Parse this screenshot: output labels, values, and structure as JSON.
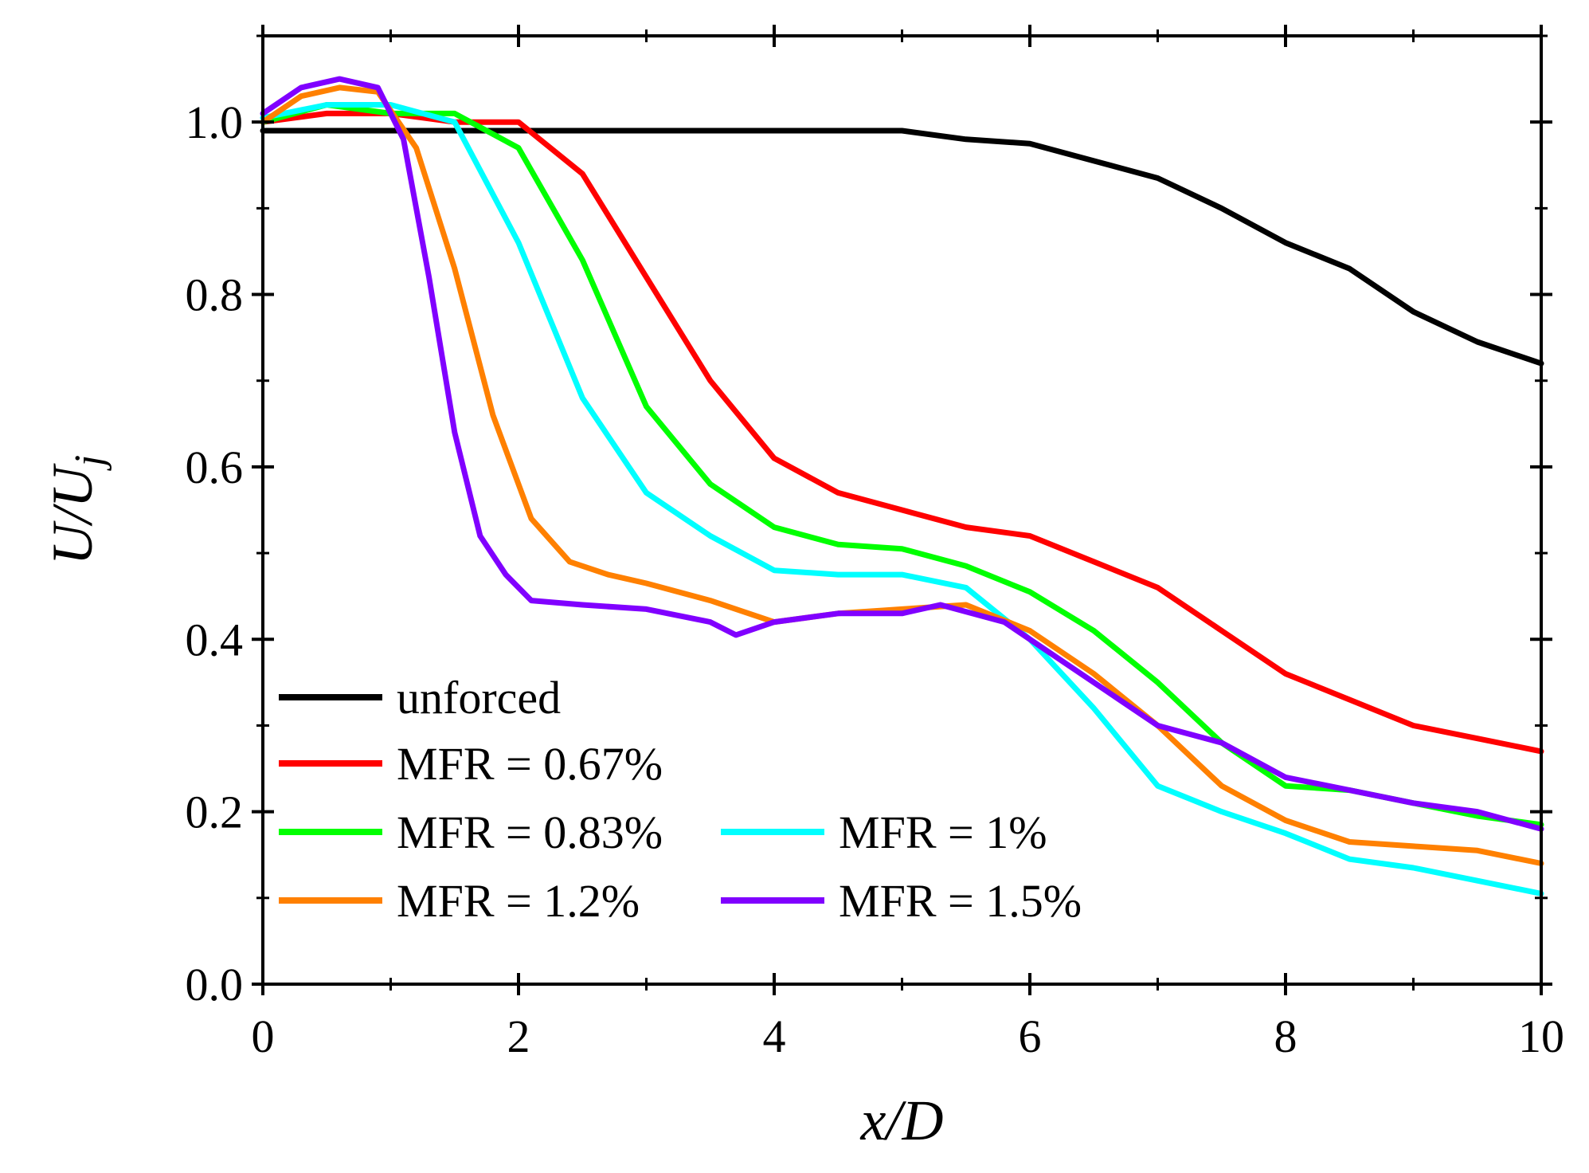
{
  "chart_data": {
    "type": "line",
    "xlabel": "x/D",
    "ylabel": "U/U_j",
    "ylabel_main": "U/U",
    "ylabel_sub": "j",
    "xlim": [
      0,
      10
    ],
    "ylim": [
      0,
      1.1
    ],
    "x_ticks": [
      "0",
      "2",
      "4",
      "6",
      "8",
      "10"
    ],
    "y_ticks": [
      "0.0",
      "0.2",
      "0.4",
      "0.6",
      "0.8",
      "1.0"
    ],
    "x_tick_values": [
      0,
      2,
      4,
      6,
      8,
      10
    ],
    "y_tick_values": [
      0,
      0.2,
      0.4,
      0.6,
      0.8,
      1.0
    ],
    "grid": false,
    "legend_position": "bottom-left",
    "series": [
      {
        "name": "unforced",
        "color": "#000000",
        "x": [
          0,
          0.5,
          1,
          2,
          3,
          4,
          4.5,
          5,
          5.5,
          6,
          6.5,
          7,
          7.5,
          8,
          8.5,
          9,
          9.5,
          10
        ],
        "y": [
          0.99,
          0.99,
          0.99,
          0.99,
          0.99,
          0.99,
          0.99,
          0.99,
          0.98,
          0.975,
          0.955,
          0.935,
          0.9,
          0.86,
          0.83,
          0.78,
          0.745,
          0.72
        ]
      },
      {
        "name": "MFR = 0.67%",
        "color": "#ff0000",
        "x": [
          0,
          0.5,
          1,
          1.5,
          2,
          2.5,
          3,
          3.5,
          4,
          4.5,
          5,
          5.5,
          6,
          6.5,
          7,
          7.5,
          8,
          8.5,
          9,
          9.5,
          10
        ],
        "y": [
          1.0,
          1.01,
          1.01,
          1.0,
          1.0,
          0.94,
          0.82,
          0.7,
          0.61,
          0.57,
          0.55,
          0.53,
          0.52,
          0.49,
          0.46,
          0.41,
          0.36,
          0.33,
          0.3,
          0.285,
          0.27
        ]
      },
      {
        "name": "MFR = 0.83%",
        "color": "#00ff00",
        "x": [
          0,
          0.5,
          1,
          1.5,
          2,
          2.5,
          3,
          3.5,
          4,
          4.5,
          5,
          5.5,
          6,
          6.5,
          7,
          7.5,
          8,
          8.5,
          9,
          9.5,
          10
        ],
        "y": [
          1.0,
          1.02,
          1.01,
          1.01,
          0.97,
          0.84,
          0.67,
          0.58,
          0.53,
          0.51,
          0.505,
          0.485,
          0.455,
          0.41,
          0.35,
          0.28,
          0.23,
          0.225,
          0.21,
          0.195,
          0.185
        ]
      },
      {
        "name": "MFR = 1%",
        "color": "#00ffff",
        "x": [
          0,
          0.5,
          1,
          1.5,
          2,
          2.5,
          3,
          3.5,
          4,
          4.5,
          5,
          5.5,
          6,
          6.5,
          7,
          7.5,
          8,
          8.5,
          9,
          9.5,
          10
        ],
        "y": [
          1.005,
          1.02,
          1.02,
          1.0,
          0.86,
          0.68,
          0.57,
          0.52,
          0.48,
          0.475,
          0.475,
          0.46,
          0.4,
          0.32,
          0.23,
          0.2,
          0.175,
          0.145,
          0.135,
          0.12,
          0.105
        ]
      },
      {
        "name": "MFR = 1.2%",
        "color": "#ff8000",
        "x": [
          0,
          0.3,
          0.6,
          0.9,
          1.2,
          1.5,
          1.8,
          2.1,
          2.4,
          2.7,
          3.0,
          3.5,
          4,
          4.5,
          5,
          5.5,
          6,
          6.5,
          7,
          7.5,
          8,
          8.5,
          9,
          9.5,
          10
        ],
        "y": [
          1.0,
          1.03,
          1.04,
          1.035,
          0.97,
          0.83,
          0.66,
          0.54,
          0.49,
          0.475,
          0.465,
          0.445,
          0.42,
          0.43,
          0.435,
          0.44,
          0.41,
          0.36,
          0.3,
          0.23,
          0.19,
          0.165,
          0.16,
          0.155,
          0.14
        ]
      },
      {
        "name": "MFR = 1.5%",
        "color": "#8000ff",
        "x": [
          0,
          0.3,
          0.6,
          0.9,
          1.1,
          1.3,
          1.5,
          1.7,
          1.9,
          2.1,
          2.5,
          3.0,
          3.5,
          3.7,
          4.0,
          4.5,
          5.0,
          5.3,
          5.8,
          6.5,
          7.0,
          7.5,
          8.0,
          8.5,
          9.0,
          9.5,
          10
        ],
        "y": [
          1.01,
          1.04,
          1.05,
          1.04,
          0.98,
          0.82,
          0.64,
          0.52,
          0.475,
          0.445,
          0.44,
          0.435,
          0.42,
          0.405,
          0.42,
          0.43,
          0.43,
          0.44,
          0.42,
          0.35,
          0.3,
          0.28,
          0.24,
          0.225,
          0.21,
          0.2,
          0.18
        ]
      }
    ]
  }
}
